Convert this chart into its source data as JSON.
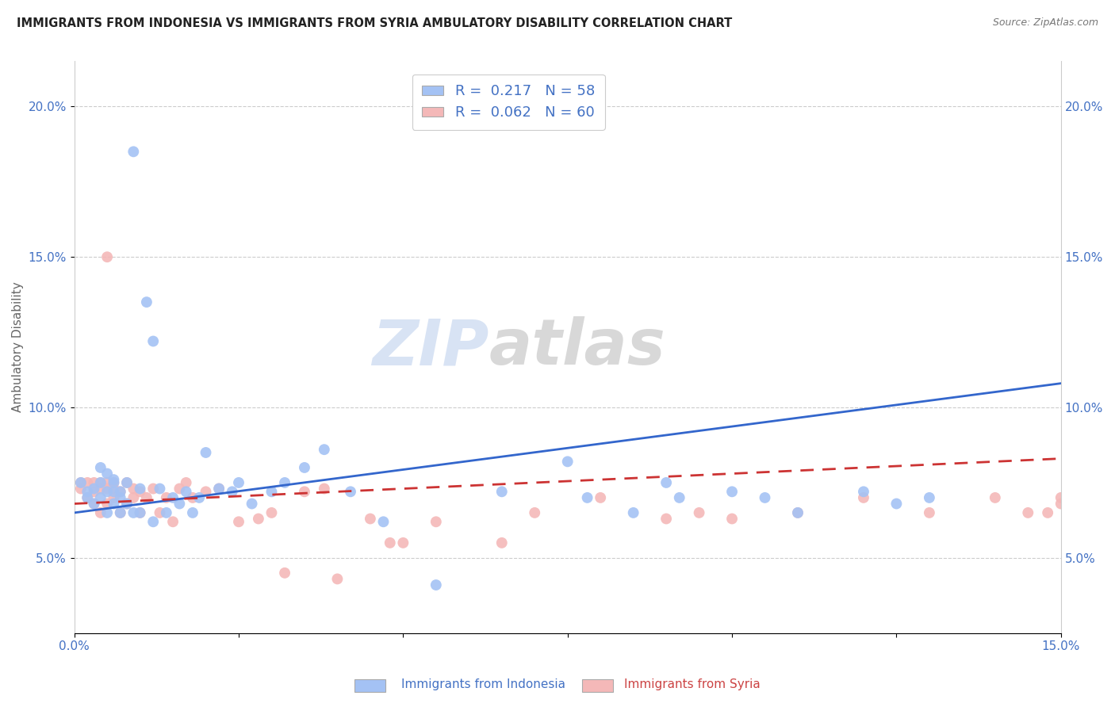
{
  "title": "IMMIGRANTS FROM INDONESIA VS IMMIGRANTS FROM SYRIA AMBULATORY DISABILITY CORRELATION CHART",
  "source": "Source: ZipAtlas.com",
  "ylabel": "Ambulatory Disability",
  "xlim": [
    0,
    0.15
  ],
  "ylim": [
    0.025,
    0.215
  ],
  "x_ticks": [
    0.0,
    0.025,
    0.05,
    0.075,
    0.1,
    0.125,
    0.15
  ],
  "x_tick_labels": [
    "0.0%",
    "",
    "",
    "",
    "",
    "",
    "15.0%"
  ],
  "y_ticks": [
    0.05,
    0.1,
    0.15,
    0.2
  ],
  "y_tick_labels": [
    "5.0%",
    "10.0%",
    "15.0%",
    "20.0%"
  ],
  "indonesia_color": "#a4c2f4",
  "syria_color": "#f4b8b8",
  "indonesia_line_color": "#3366cc",
  "syria_line_color": "#cc3333",
  "R_indonesia": 0.217,
  "N_indonesia": 58,
  "R_syria": 0.062,
  "N_syria": 60,
  "indonesia_x": [
    0.001,
    0.002,
    0.002,
    0.003,
    0.003,
    0.004,
    0.004,
    0.004,
    0.005,
    0.005,
    0.005,
    0.006,
    0.006,
    0.006,
    0.006,
    0.007,
    0.007,
    0.007,
    0.008,
    0.008,
    0.009,
    0.009,
    0.01,
    0.01,
    0.011,
    0.012,
    0.012,
    0.013,
    0.014,
    0.015,
    0.016,
    0.017,
    0.018,
    0.019,
    0.02,
    0.022,
    0.024,
    0.025,
    0.027,
    0.03,
    0.032,
    0.035,
    0.038,
    0.042,
    0.047,
    0.055,
    0.065,
    0.075,
    0.078,
    0.085,
    0.09,
    0.092,
    0.1,
    0.105,
    0.11,
    0.12,
    0.125,
    0.13
  ],
  "indonesia_y": [
    0.075,
    0.072,
    0.07,
    0.073,
    0.068,
    0.07,
    0.075,
    0.08,
    0.065,
    0.072,
    0.078,
    0.068,
    0.072,
    0.075,
    0.076,
    0.065,
    0.07,
    0.072,
    0.068,
    0.075,
    0.185,
    0.065,
    0.065,
    0.073,
    0.135,
    0.122,
    0.062,
    0.073,
    0.065,
    0.07,
    0.068,
    0.072,
    0.065,
    0.07,
    0.085,
    0.073,
    0.072,
    0.075,
    0.068,
    0.072,
    0.075,
    0.08,
    0.086,
    0.072,
    0.062,
    0.041,
    0.072,
    0.082,
    0.07,
    0.065,
    0.075,
    0.07,
    0.072,
    0.07,
    0.065,
    0.072,
    0.068,
    0.07
  ],
  "syria_x": [
    0.001,
    0.001,
    0.002,
    0.002,
    0.003,
    0.003,
    0.003,
    0.004,
    0.004,
    0.004,
    0.005,
    0.005,
    0.005,
    0.005,
    0.006,
    0.006,
    0.006,
    0.007,
    0.007,
    0.008,
    0.008,
    0.009,
    0.009,
    0.01,
    0.01,
    0.011,
    0.012,
    0.013,
    0.014,
    0.015,
    0.016,
    0.017,
    0.018,
    0.02,
    0.022,
    0.025,
    0.028,
    0.03,
    0.032,
    0.035,
    0.038,
    0.04,
    0.045,
    0.048,
    0.05,
    0.055,
    0.065,
    0.07,
    0.08,
    0.09,
    0.095,
    0.1,
    0.11,
    0.12,
    0.13,
    0.14,
    0.145,
    0.148,
    0.15,
    0.15
  ],
  "syria_y": [
    0.073,
    0.075,
    0.07,
    0.075,
    0.068,
    0.072,
    0.075,
    0.065,
    0.073,
    0.075,
    0.068,
    0.073,
    0.075,
    0.15,
    0.07,
    0.073,
    0.075,
    0.065,
    0.072,
    0.068,
    0.075,
    0.07,
    0.073,
    0.065,
    0.072,
    0.07,
    0.073,
    0.065,
    0.07,
    0.062,
    0.073,
    0.075,
    0.07,
    0.072,
    0.073,
    0.062,
    0.063,
    0.065,
    0.045,
    0.072,
    0.073,
    0.043,
    0.063,
    0.055,
    0.055,
    0.062,
    0.055,
    0.065,
    0.07,
    0.063,
    0.065,
    0.063,
    0.065,
    0.07,
    0.065,
    0.07,
    0.065,
    0.065,
    0.068,
    0.07
  ],
  "indonesia_trendline_x": [
    0.0,
    0.15
  ],
  "indonesia_trendline_y": [
    0.065,
    0.108
  ],
  "syria_trendline_x": [
    0.0,
    0.15
  ],
  "syria_trendline_y": [
    0.068,
    0.083
  ]
}
